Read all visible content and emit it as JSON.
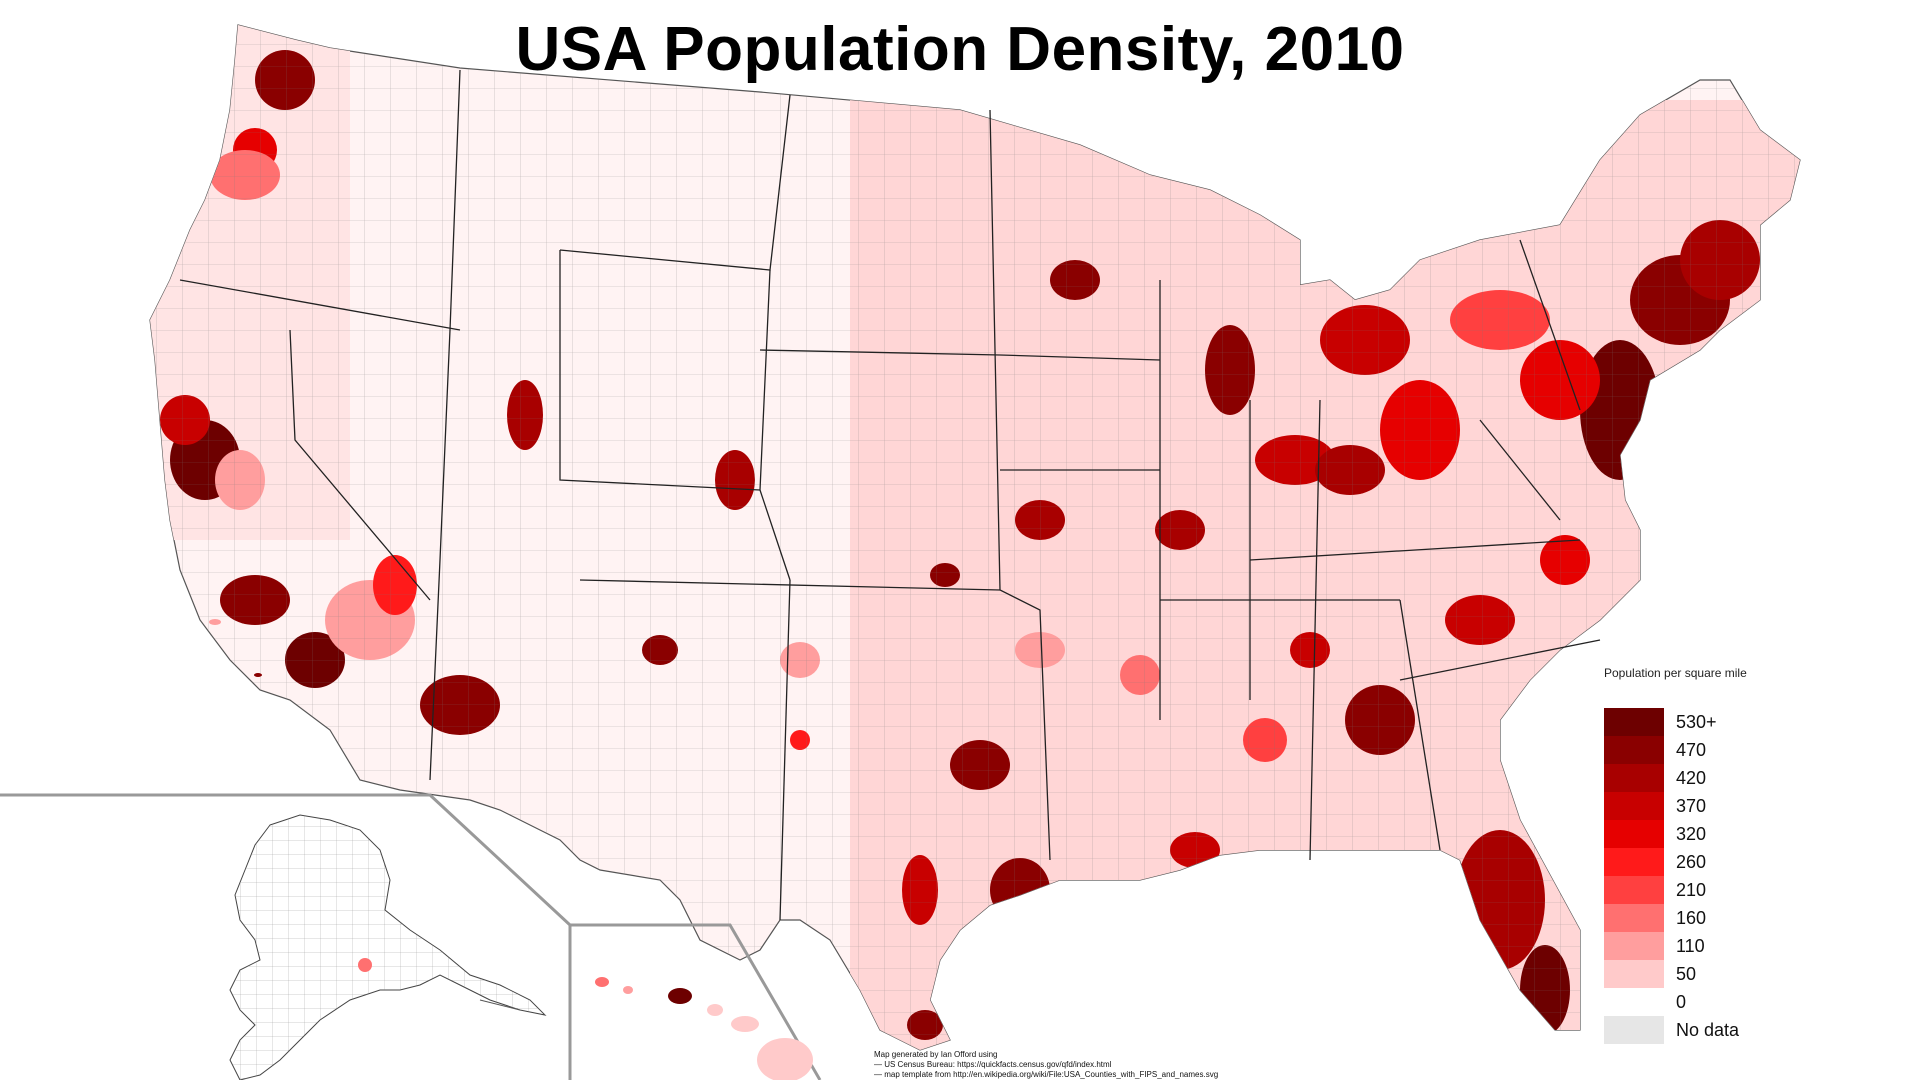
{
  "title": "USA Population Density, 2010",
  "legend": {
    "title": "Population per square mile",
    "items": [
      {
        "label": "530+",
        "color": "#6d0000"
      },
      {
        "label": "470",
        "color": "#8a0000"
      },
      {
        "label": "420",
        "color": "#a80000"
      },
      {
        "label": "370",
        "color": "#c80000"
      },
      {
        "label": "320",
        "color": "#e60000"
      },
      {
        "label": "260",
        "color": "#ff1a1a"
      },
      {
        "label": "210",
        "color": "#ff4040"
      },
      {
        "label": "160",
        "color": "#ff7070"
      },
      {
        "label": "110",
        "color": "#ff9e9e"
      },
      {
        "label": "50",
        "color": "#ffcaca"
      },
      {
        "label": "0",
        "color": "#ffffff"
      },
      {
        "label": "No data",
        "color": "#e6e6e6"
      }
    ]
  },
  "credits": [
    "Map generated by Ian Offord using",
    "— US Census Bureau: https://quickfacts.census.gov/qfd/index.html",
    "— map template from http://en.wikipedia.org/wiki/File:USA_Counties_with_FIPS_and_names.svg"
  ],
  "regions": {
    "conus": "contiguous-us",
    "alaska": "alaska-inset",
    "hawaii": "hawaii-inset"
  }
}
